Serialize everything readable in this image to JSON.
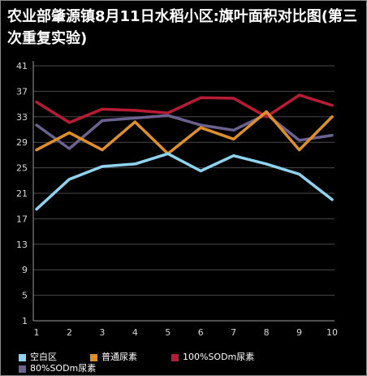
{
  "chart_data": {
    "type": "line",
    "title": "农业部肇源镇8月11日水稻小区:旗叶面积对比图(第三次重复实验)",
    "xlabel": "",
    "ylabel": "",
    "categories": [
      "1",
      "2",
      "3",
      "4",
      "5",
      "6",
      "7",
      "8",
      "9",
      "10"
    ],
    "y_ticks": [
      1,
      5,
      9,
      13,
      17,
      21,
      25,
      29,
      33,
      37,
      41
    ],
    "ylim": [
      1,
      41
    ],
    "grid": true,
    "legend_position": "bottom",
    "background": "#000000",
    "series": [
      {
        "name": "空白区",
        "color": "#8fd4ee",
        "values": [
          18.5,
          23.2,
          25.2,
          25.6,
          27.2,
          24.5,
          26.9,
          25.6,
          24.0,
          20.0
        ]
      },
      {
        "name": "普通尿素",
        "color": "#e0902a",
        "values": [
          27.8,
          30.5,
          27.8,
          32.2,
          27.2,
          31.3,
          29.5,
          33.8,
          27.8,
          33.0
        ]
      },
      {
        "name": "100%SODm尿素",
        "color": "#b81c34",
        "values": [
          35.3,
          32.1,
          34.2,
          34.0,
          33.6,
          36.0,
          35.9,
          33.0,
          36.4,
          34.8
        ]
      },
      {
        "name": "80%SODm尿素",
        "color": "#6b6290",
        "values": [
          31.7,
          28.0,
          32.4,
          32.8,
          33.2,
          31.7,
          30.9,
          33.4,
          29.3,
          30.1
        ]
      }
    ]
  }
}
